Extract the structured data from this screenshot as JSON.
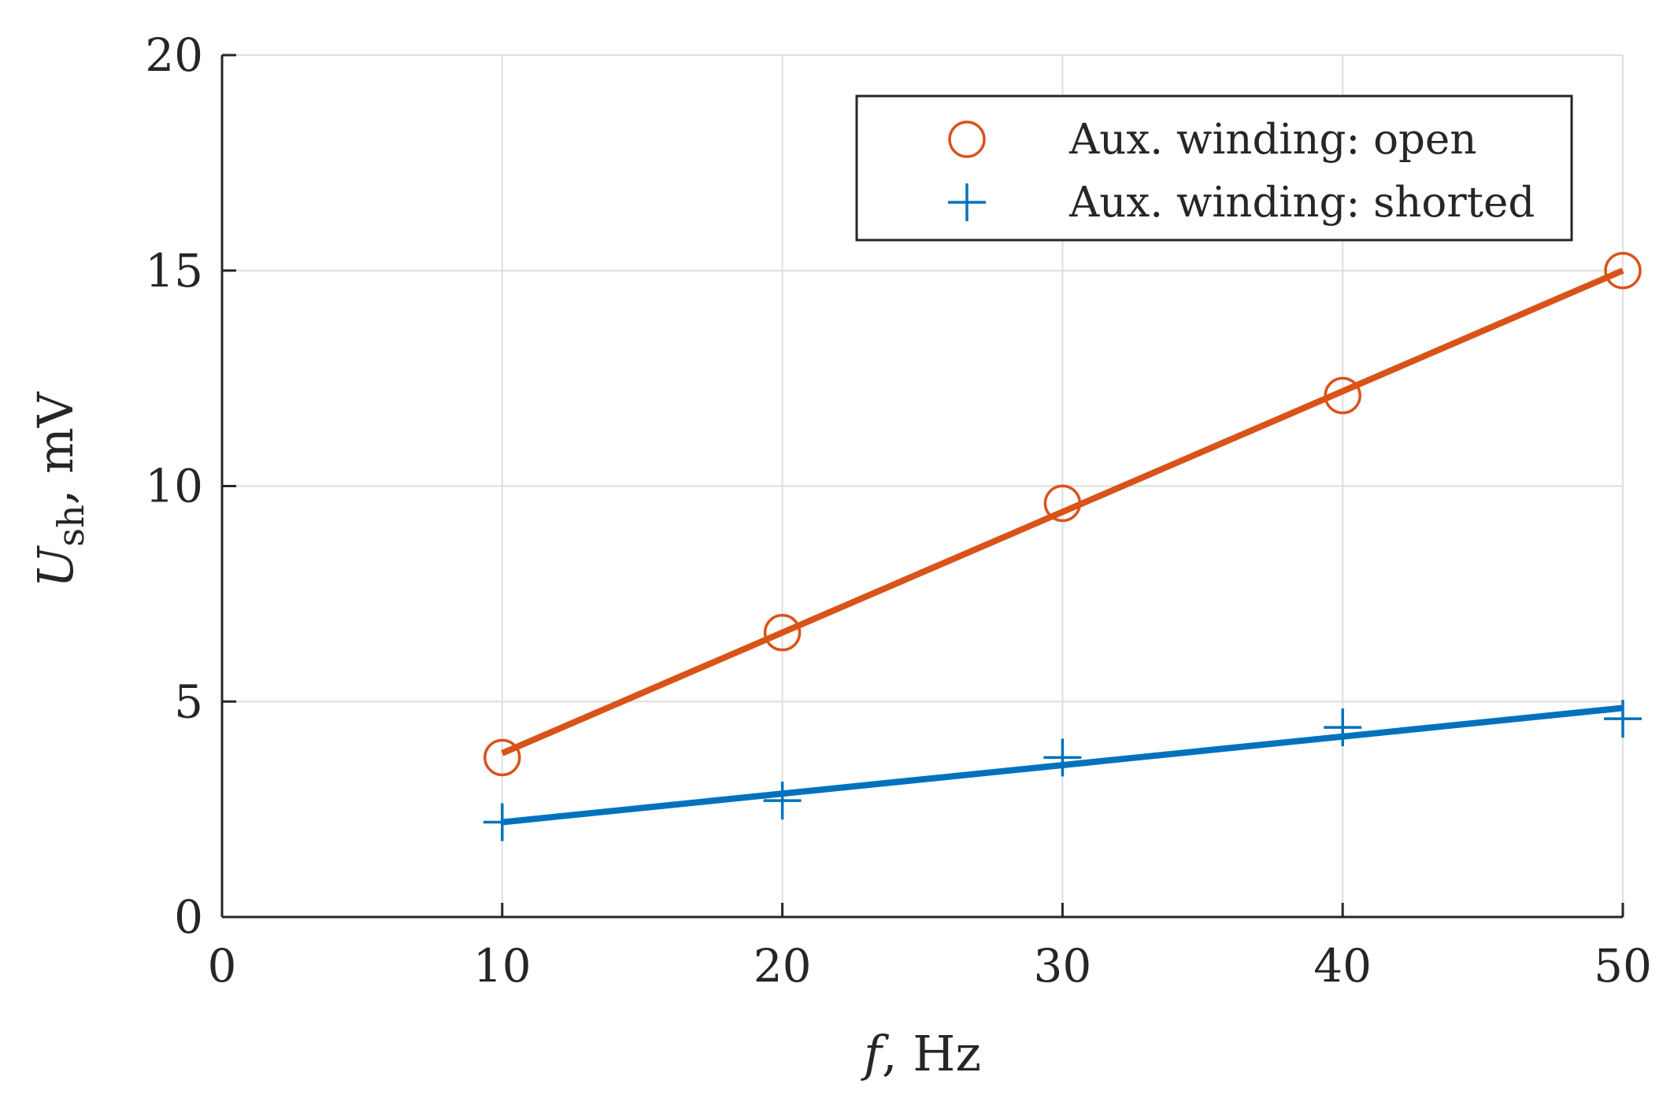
{
  "chart_data": {
    "type": "scatter",
    "xlim": [
      0,
      50
    ],
    "ylim": [
      0,
      20
    ],
    "x_ticks": [
      0,
      10,
      20,
      30,
      40,
      50
    ],
    "y_ticks": [
      0,
      5,
      10,
      15,
      20
    ],
    "grid": true,
    "xlabel_var": "f",
    "xlabel_unit": ", Hz",
    "ylabel_var": "U",
    "ylabel_sub": "sh",
    "ylabel_unit": ", mV",
    "legend_position": "top-right",
    "series": [
      {
        "name": "Aux. winding: open",
        "marker": "circle",
        "color": "#D95319",
        "x": [
          10,
          20,
          30,
          40,
          50
        ],
        "y": [
          3.7,
          6.6,
          9.6,
          12.1,
          15.0
        ],
        "fit_line": [
          [
            10,
            3.8
          ],
          [
            50,
            15.0
          ]
        ]
      },
      {
        "name": "Aux. winding: shorted",
        "marker": "plus",
        "color": "#0072BD",
        "x": [
          10,
          20,
          30,
          40,
          50
        ],
        "y": [
          2.2,
          2.7,
          3.7,
          4.4,
          4.6
        ],
        "fit_line": [
          [
            10,
            2.2
          ],
          [
            50,
            4.85
          ]
        ]
      }
    ]
  }
}
